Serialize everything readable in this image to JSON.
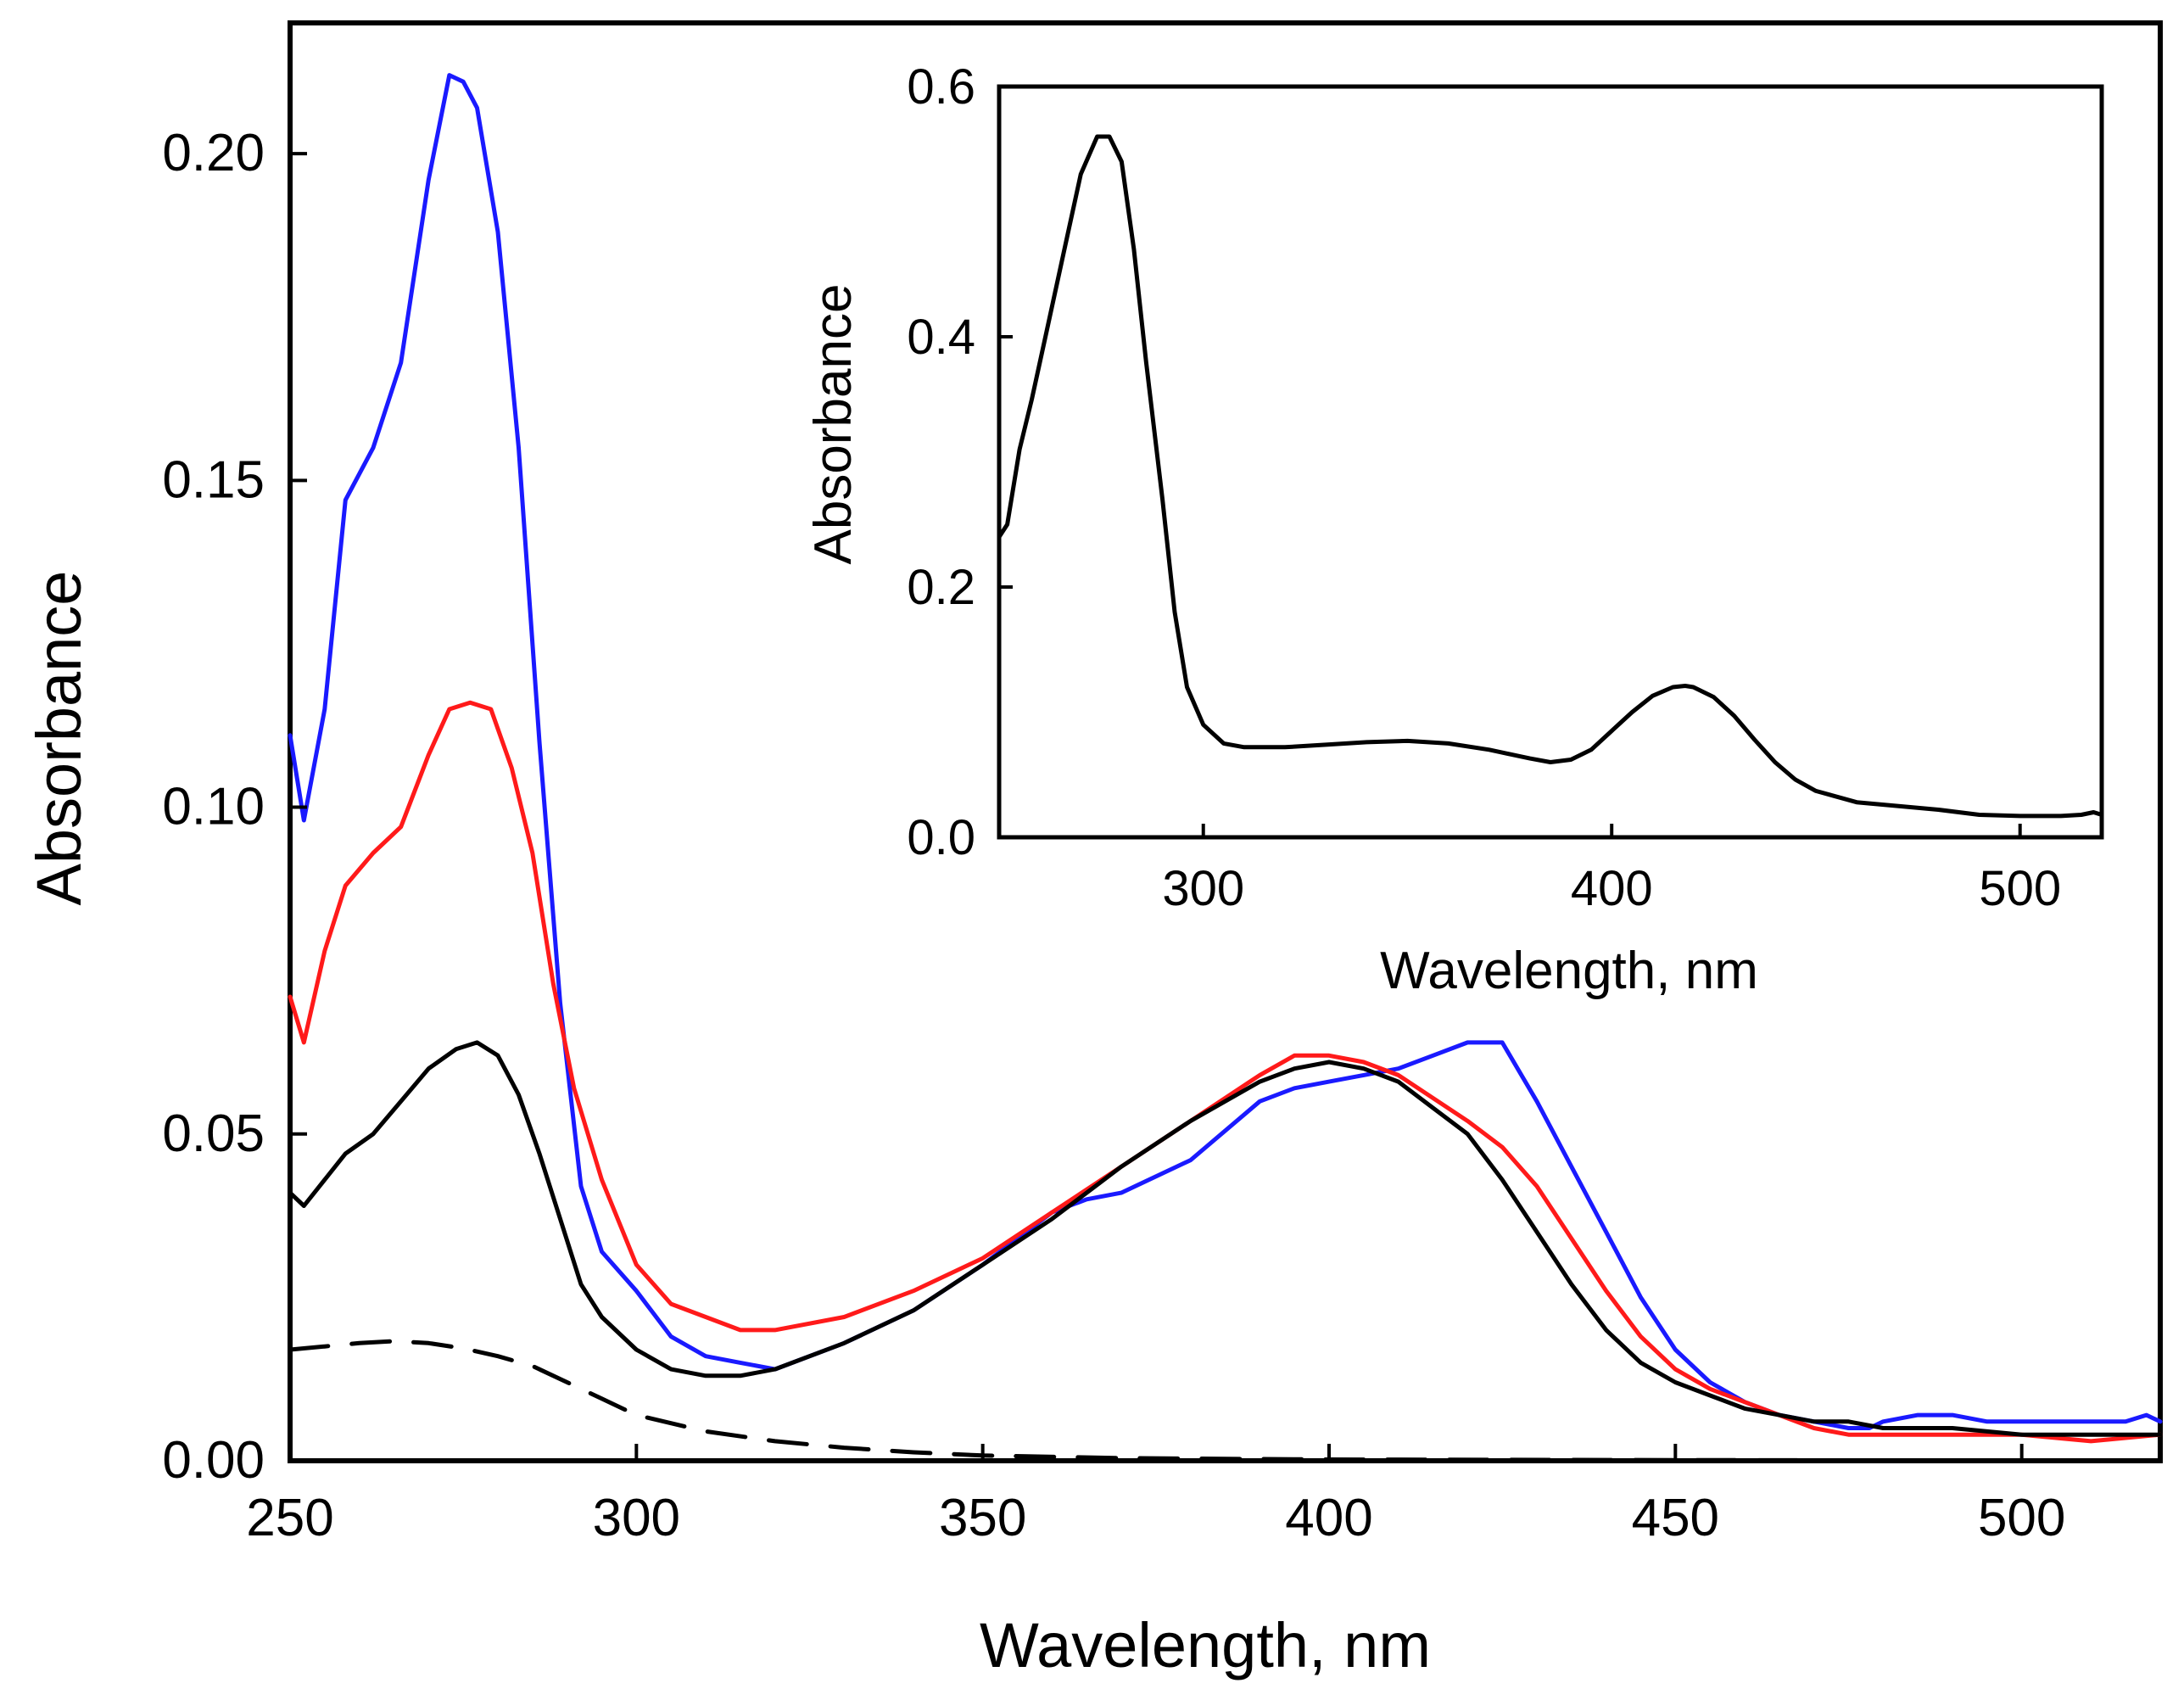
{
  "chart_data": [
    {
      "type": "line",
      "title": "",
      "xlabel": "Wavelength, nm",
      "ylabel": "Absorbance",
      "xlim": [
        250,
        520
      ],
      "ylim": [
        0,
        0.22
      ],
      "grid": false,
      "x_ticks": [
        250,
        300,
        350,
        400,
        450,
        500
      ],
      "x_tick_labels": [
        "250",
        "300",
        "350",
        "400",
        "450",
        "500"
      ],
      "y_ticks": [
        0,
        0.05,
        0.1,
        0.15,
        0.2
      ],
      "y_tick_labels": [
        "0.00",
        "0.05",
        "0.10",
        "0.15",
        "0.20"
      ],
      "series": [
        {
          "name": "blue",
          "color": "#1a1aff",
          "style": "solid",
          "x": [
            250,
            252,
            255,
            258,
            262,
            266,
            270,
            273,
            275,
            277,
            280,
            283,
            286,
            289,
            292,
            295,
            300,
            305,
            310,
            315,
            320,
            330,
            340,
            350,
            360,
            365,
            370,
            380,
            390,
            395,
            400,
            405,
            410,
            415,
            420,
            425,
            430,
            435,
            440,
            445,
            450,
            455,
            460,
            465,
            470,
            475,
            478,
            480,
            485,
            490,
            495,
            500,
            505,
            510,
            515,
            518,
            520
          ],
          "values": [
            0.111,
            0.098,
            0.115,
            0.147,
            0.155,
            0.168,
            0.196,
            0.212,
            0.211,
            0.207,
            0.188,
            0.155,
            0.11,
            0.07,
            0.042,
            0.032,
            0.026,
            0.019,
            0.016,
            0.015,
            0.014,
            0.018,
            0.023,
            0.03,
            0.038,
            0.04,
            0.041,
            0.046,
            0.055,
            0.057,
            0.058,
            0.059,
            0.06,
            0.062,
            0.064,
            0.064,
            0.055,
            0.045,
            0.035,
            0.025,
            0.017,
            0.012,
            0.009,
            0.007,
            0.006,
            0.005,
            0.005,
            0.006,
            0.007,
            0.007,
            0.006,
            0.006,
            0.006,
            0.006,
            0.006,
            0.007,
            0.006
          ]
        },
        {
          "name": "red",
          "color": "#ff1a1a",
          "style": "solid",
          "x": [
            250,
            252,
            255,
            258,
            262,
            266,
            270,
            273,
            276,
            279,
            282,
            285,
            288,
            291,
            295,
            300,
            305,
            310,
            315,
            320,
            330,
            340,
            350,
            360,
            370,
            380,
            390,
            395,
            400,
            405,
            410,
            420,
            425,
            430,
            435,
            440,
            445,
            450,
            455,
            460,
            465,
            470,
            475,
            480,
            490,
            500,
            510,
            520
          ],
          "values": [
            0.071,
            0.064,
            0.078,
            0.088,
            0.093,
            0.097,
            0.108,
            0.115,
            0.116,
            0.115,
            0.106,
            0.093,
            0.073,
            0.057,
            0.043,
            0.03,
            0.024,
            0.022,
            0.02,
            0.02,
            0.022,
            0.026,
            0.031,
            0.038,
            0.045,
            0.052,
            0.059,
            0.062,
            0.062,
            0.061,
            0.059,
            0.052,
            0.048,
            0.042,
            0.034,
            0.026,
            0.019,
            0.014,
            0.011,
            0.009,
            0.007,
            0.005,
            0.004,
            0.004,
            0.004,
            0.004,
            0.003,
            0.004
          ]
        },
        {
          "name": "black",
          "color": "#000000",
          "style": "solid",
          "x": [
            250,
            252,
            255,
            258,
            262,
            266,
            270,
            274,
            277,
            280,
            283,
            286,
            289,
            292,
            295,
            300,
            305,
            310,
            315,
            320,
            330,
            340,
            350,
            360,
            370,
            380,
            390,
            395,
            400,
            405,
            410,
            415,
            420,
            425,
            430,
            435,
            440,
            445,
            450,
            455,
            460,
            465,
            470,
            475,
            480,
            490,
            500,
            510,
            520
          ],
          "values": [
            0.041,
            0.039,
            0.043,
            0.047,
            0.05,
            0.055,
            0.06,
            0.063,
            0.064,
            0.062,
            0.056,
            0.047,
            0.037,
            0.027,
            0.022,
            0.017,
            0.014,
            0.013,
            0.013,
            0.014,
            0.018,
            0.023,
            0.03,
            0.037,
            0.045,
            0.052,
            0.058,
            0.06,
            0.061,
            0.06,
            0.058,
            0.054,
            0.05,
            0.043,
            0.035,
            0.027,
            0.02,
            0.015,
            0.012,
            0.01,
            0.008,
            0.007,
            0.006,
            0.006,
            0.005,
            0.005,
            0.004,
            0.004,
            0.004
          ]
        },
        {
          "name": "black-dashed",
          "color": "#000000",
          "style": "dashed",
          "x": [
            250,
            255,
            260,
            265,
            270,
            275,
            280,
            285,
            290,
            295,
            300,
            310,
            320,
            330,
            340,
            350,
            370,
            400,
            450,
            520
          ],
          "values": [
            0.017,
            0.0175,
            0.018,
            0.0183,
            0.018,
            0.0172,
            0.016,
            0.0145,
            0.012,
            0.0095,
            0.007,
            0.0045,
            0.003,
            0.002,
            0.0013,
            0.0008,
            0.0004,
            0.0002,
            0.0001,
            0.0
          ]
        }
      ]
    },
    {
      "type": "line",
      "title": "",
      "xlabel": "Wavelength, nm",
      "ylabel": "Absorbance",
      "xlim": [
        250,
        520
      ],
      "ylim": [
        0,
        0.6
      ],
      "grid": false,
      "legend": "none",
      "x_ticks": [
        300,
        400,
        500
      ],
      "x_tick_labels": [
        "300",
        "400",
        "500"
      ],
      "y_ticks": [
        0,
        0.2,
        0.4,
        0.6
      ],
      "y_tick_labels": [
        "0.0",
        "0.2",
        "0.4",
        "0.6"
      ],
      "series": [
        {
          "name": "black",
          "color": "#000000",
          "style": "solid",
          "x": [
            250,
            252,
            255,
            258,
            262,
            266,
            270,
            274,
            277,
            280,
            283,
            286,
            290,
            293,
            296,
            300,
            305,
            310,
            320,
            330,
            340,
            350,
            360,
            370,
            380,
            385,
            390,
            395,
            400,
            405,
            410,
            415,
            418,
            420,
            425,
            430,
            435,
            440,
            445,
            450,
            460,
            470,
            480,
            490,
            500,
            510,
            515,
            518,
            520
          ],
          "values": [
            0.24,
            0.25,
            0.31,
            0.35,
            0.41,
            0.47,
            0.53,
            0.56,
            0.56,
            0.54,
            0.47,
            0.38,
            0.27,
            0.18,
            0.12,
            0.09,
            0.075,
            0.072,
            0.072,
            0.074,
            0.076,
            0.077,
            0.075,
            0.07,
            0.063,
            0.06,
            0.062,
            0.07,
            0.085,
            0.1,
            0.113,
            0.12,
            0.121,
            0.12,
            0.112,
            0.097,
            0.078,
            0.06,
            0.046,
            0.037,
            0.028,
            0.025,
            0.022,
            0.018,
            0.017,
            0.017,
            0.018,
            0.02,
            0.018
          ]
        }
      ]
    }
  ]
}
